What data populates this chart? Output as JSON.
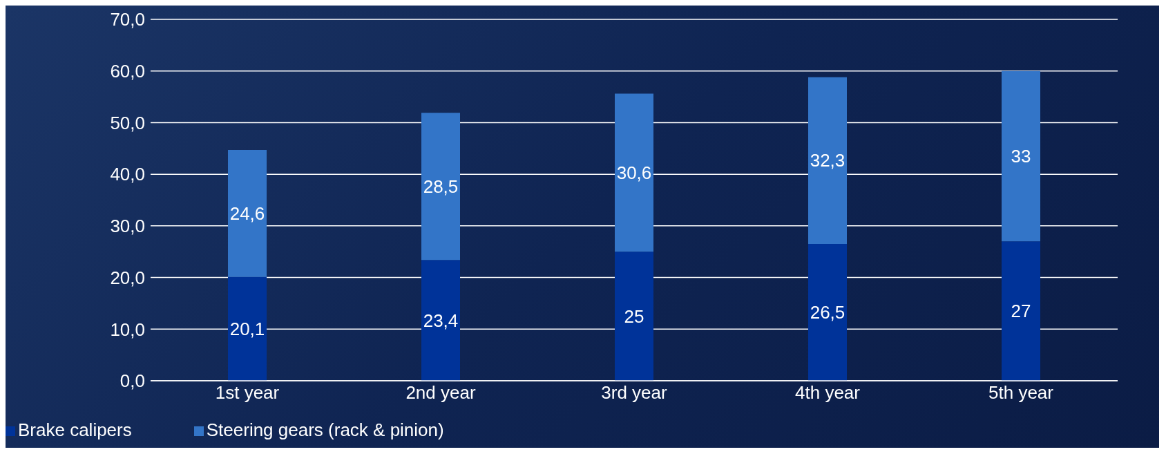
{
  "chart_data": {
    "type": "bar",
    "stacked": true,
    "categories": [
      "1st year",
      "2nd year",
      "3rd year",
      "4th year",
      "5th year"
    ],
    "series": [
      {
        "name": "Brake calipers",
        "color": "#003399",
        "values": [
          20.1,
          23.4,
          25,
          26.5,
          27
        ],
        "value_labels": [
          "20,1",
          "23,4",
          "25",
          "26,5",
          "27"
        ]
      },
      {
        "name": "Steering gears (rack & pinion)",
        "color": "#3375c8",
        "values": [
          24.6,
          28.5,
          30.6,
          32.3,
          33
        ],
        "value_labels": [
          "24,6",
          "28,5",
          "30,6",
          "32,3",
          "33"
        ]
      }
    ],
    "ylim": [
      0,
      70
    ],
    "yticks": [
      {
        "value": 0,
        "label": "0,0"
      },
      {
        "value": 10,
        "label": "10,0"
      },
      {
        "value": 20,
        "label": "20,0"
      },
      {
        "value": 30,
        "label": "30,0"
      },
      {
        "value": 40,
        "label": "40,0"
      },
      {
        "value": 50,
        "label": "50,0"
      },
      {
        "value": 60,
        "label": "60,0"
      },
      {
        "value": 70,
        "label": "70,0"
      }
    ],
    "grid": "y",
    "legend": "bottom left"
  }
}
